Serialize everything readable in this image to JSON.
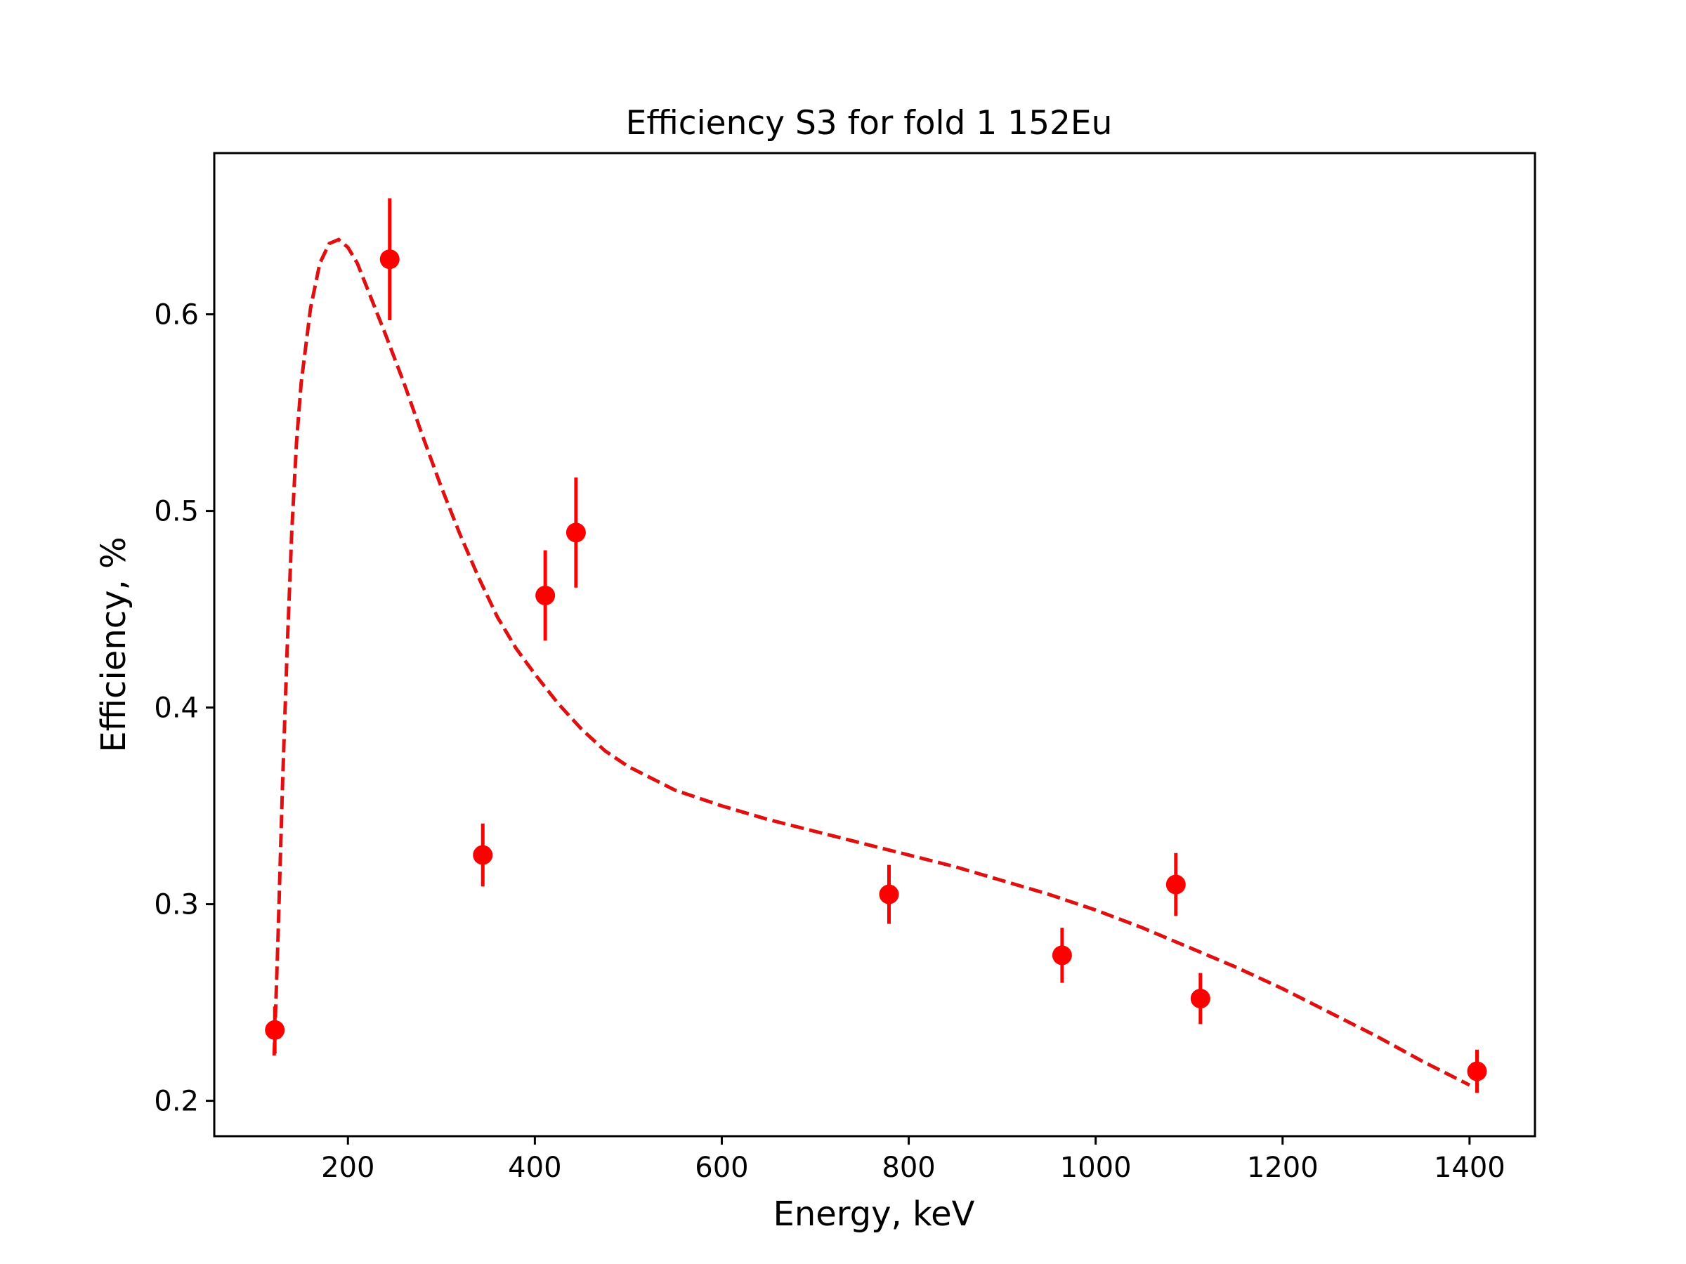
{
  "chart_data": {
    "type": "scatter",
    "title": "Efficiency S3 for fold 1 152Eu",
    "xlabel": "Energy, keV",
    "ylabel": "Efficiency, %",
    "xlim": [
      57,
      1470
    ],
    "ylim": [
      0.182,
      0.682
    ],
    "xticks": [
      200,
      400,
      600,
      800,
      1000,
      1200,
      1400
    ],
    "yticks": [
      0.2,
      0.3,
      0.4,
      0.5,
      0.6
    ],
    "xtick_labels": [
      "200",
      "400",
      "600",
      "800",
      "1000",
      "1200",
      "1400"
    ],
    "ytick_labels": [
      "0.2",
      "0.3",
      "0.4",
      "0.5",
      "0.6"
    ],
    "grid": false,
    "legend": "none",
    "color": "#ff0000",
    "fit_color": "#e01010",
    "series": [
      {
        "kind": "errorbar",
        "points": [
          {
            "x": 121.8,
            "y": 0.236,
            "err": 0.012
          },
          {
            "x": 244.7,
            "y": 0.628,
            "err": 0.031
          },
          {
            "x": 344.3,
            "y": 0.325,
            "err": 0.016
          },
          {
            "x": 411.1,
            "y": 0.457,
            "err": 0.023
          },
          {
            "x": 444.0,
            "y": 0.489,
            "err": 0.028
          },
          {
            "x": 778.9,
            "y": 0.305,
            "err": 0.015
          },
          {
            "x": 964.1,
            "y": 0.274,
            "err": 0.014
          },
          {
            "x": 1085.8,
            "y": 0.31,
            "err": 0.016
          },
          {
            "x": 1112.1,
            "y": 0.252,
            "err": 0.013
          },
          {
            "x": 1408.0,
            "y": 0.215,
            "err": 0.011
          }
        ]
      },
      {
        "kind": "fit-dashed",
        "x": [
          121,
          125,
          130,
          135,
          140,
          145,
          150,
          160,
          170,
          180,
          190,
          200,
          210,
          220,
          240,
          260,
          280,
          300,
          320,
          340,
          360,
          380,
          400,
          425,
          450,
          475,
          500,
          550,
          600,
          650,
          700,
          750,
          800,
          850,
          900,
          950,
          1000,
          1050,
          1100,
          1150,
          1200,
          1250,
          1300,
          1350,
          1400
        ],
        "y": [
          0.223,
          0.28,
          0.36,
          0.43,
          0.49,
          0.535,
          0.565,
          0.603,
          0.626,
          0.636,
          0.638,
          0.634,
          0.626,
          0.614,
          0.59,
          0.565,
          0.538,
          0.512,
          0.488,
          0.466,
          0.446,
          0.43,
          0.417,
          0.402,
          0.389,
          0.378,
          0.37,
          0.358,
          0.35,
          0.343,
          0.337,
          0.331,
          0.325,
          0.319,
          0.312,
          0.305,
          0.297,
          0.288,
          0.278,
          0.268,
          0.257,
          0.245,
          0.233,
          0.22,
          0.208
        ]
      }
    ]
  }
}
